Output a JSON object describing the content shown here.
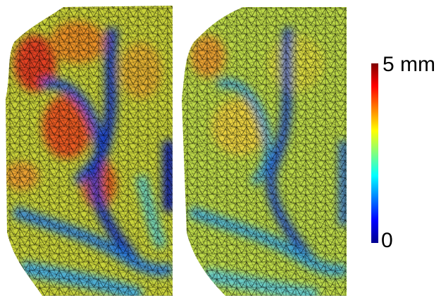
{
  "colorbar": {
    "max_label": "5 mm",
    "min_label": "0"
  }
}
